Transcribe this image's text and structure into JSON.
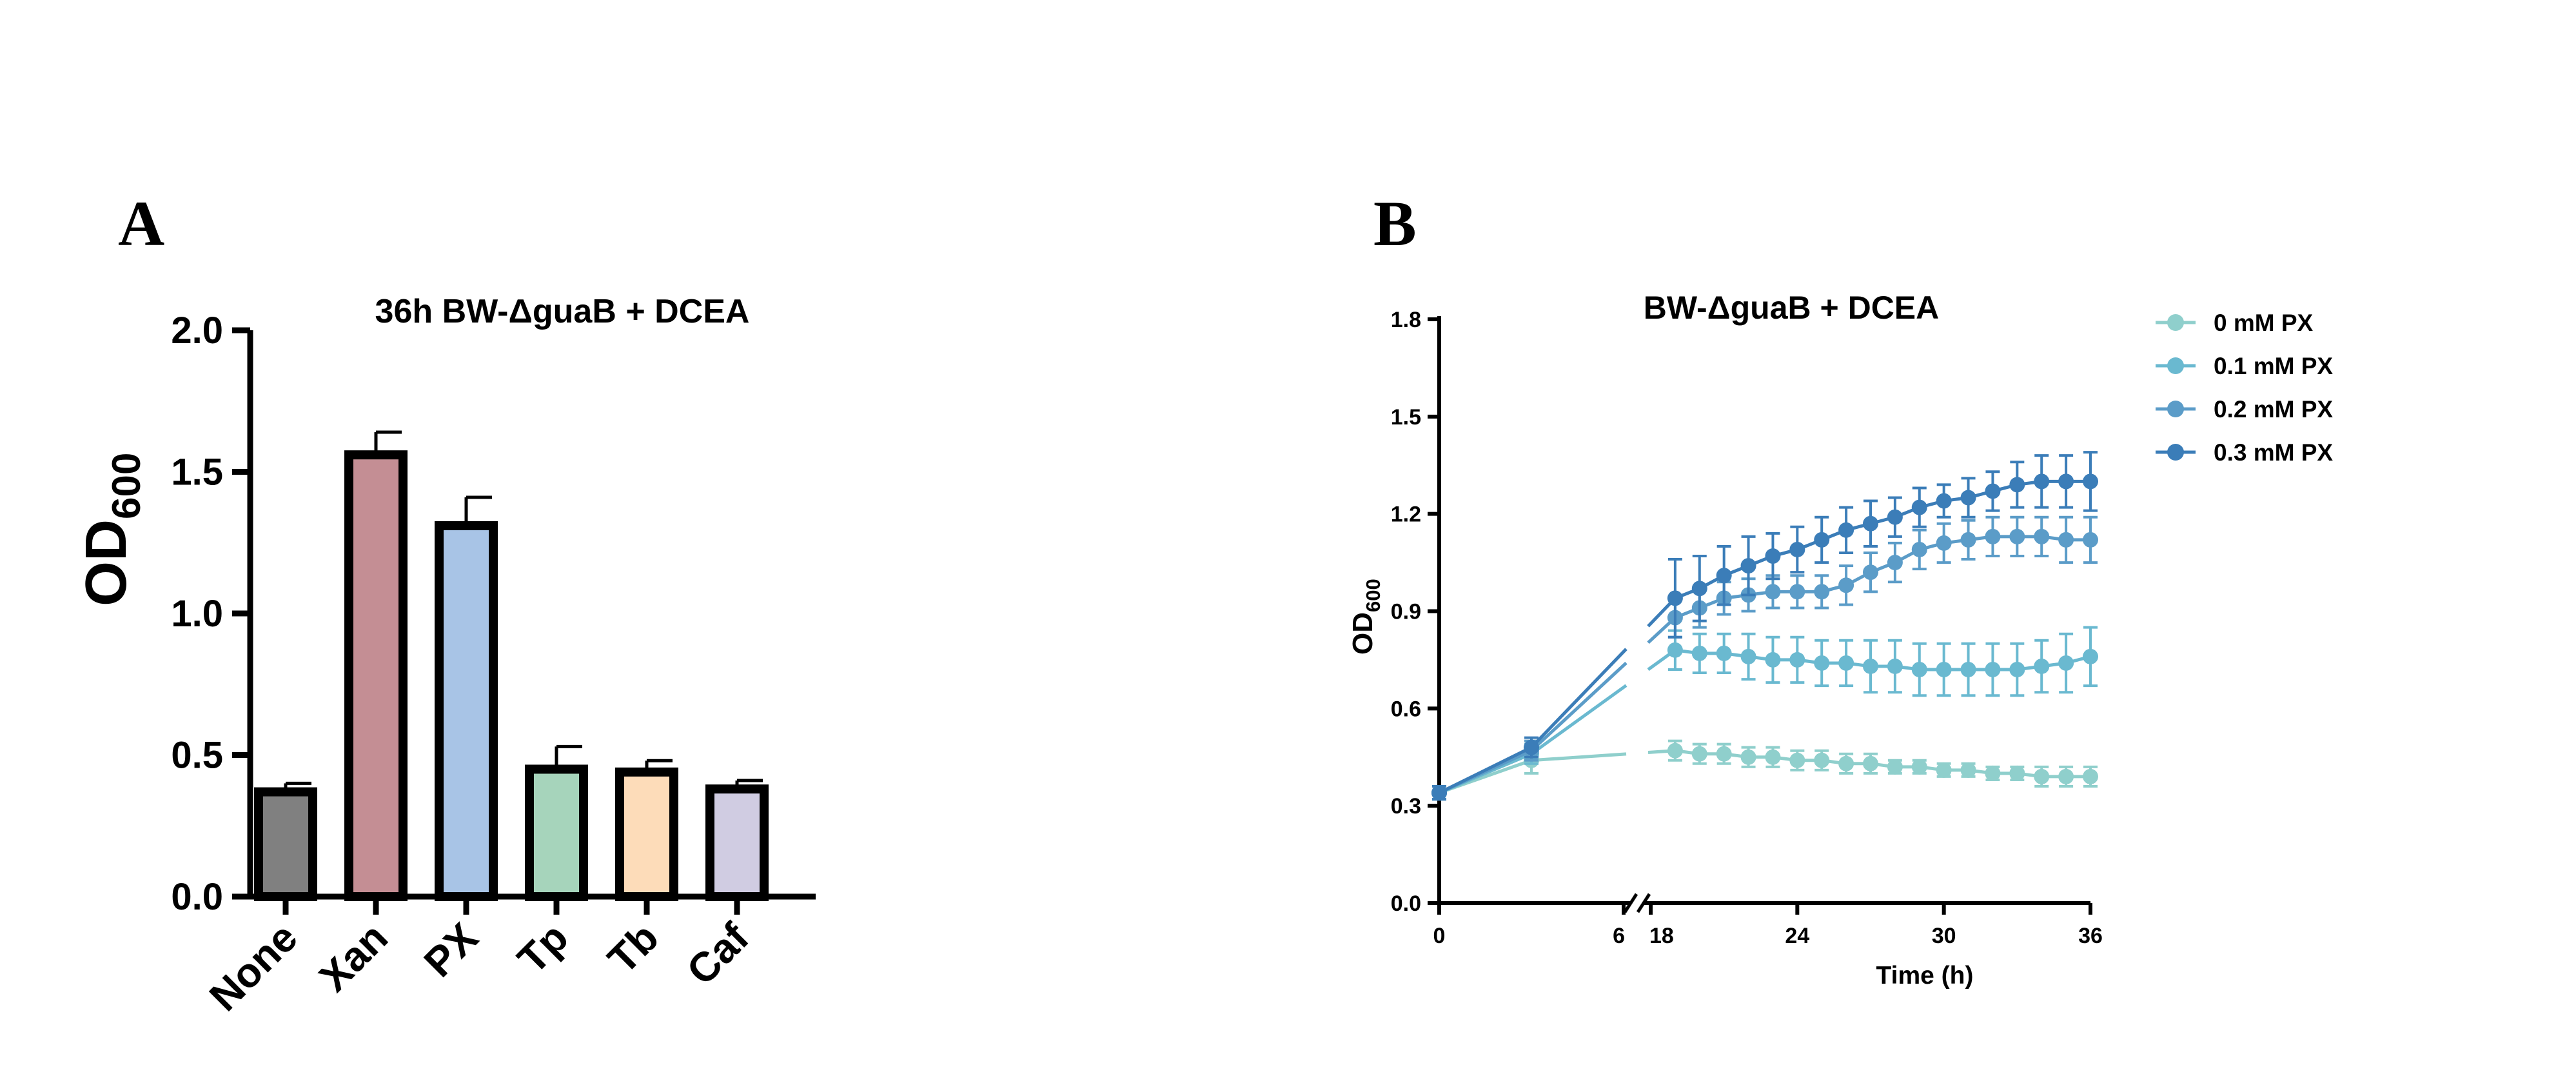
{
  "panel_labels": {
    "a": "A",
    "b": "B"
  },
  "chart_data": [
    {
      "type": "bar",
      "title": "36h BW-ΔguaB + DCEA",
      "ylabel_main": "OD",
      "ylabel_sub": "600",
      "xlabel": "",
      "ylim": [
        0,
        2.0
      ],
      "yticks": [
        "0.0",
        "0.5",
        "1.0",
        "1.5",
        "2.0"
      ],
      "categories": [
        "None",
        "Xan",
        "PX",
        "Tp",
        "Tb",
        "Caf"
      ],
      "values": [
        0.37,
        1.56,
        1.31,
        0.45,
        0.44,
        0.38
      ],
      "errors": [
        0.03,
        0.08,
        0.1,
        0.08,
        0.04,
        0.03
      ],
      "colors": [
        "#808080",
        "#c48e94",
        "#a8c4e6",
        "#a6d4bb",
        "#fddcb9",
        "#d0cce2"
      ]
    },
    {
      "type": "line",
      "title": "BW-ΔguaB + DCEA",
      "ylabel_main": "OD",
      "ylabel_sub": "600",
      "xlabel": "Time (h)",
      "ylim": [
        0,
        1.8
      ],
      "yticks": [
        "0.0",
        "0.3",
        "0.6",
        "0.9",
        "1.2",
        "1.5",
        "1.8"
      ],
      "xticks": [
        "0",
        "6",
        "18",
        "24",
        "30",
        "36"
      ],
      "legend_position": "top-right",
      "series": [
        {
          "name": "0 mM PX",
          "color": "#8fcfcc",
          "x": [
            0,
            3,
            19,
            20,
            21,
            22,
            23,
            24,
            25,
            26,
            27,
            28,
            29,
            30,
            31,
            32,
            33,
            34,
            35,
            36
          ],
          "y": [
            0.34,
            0.44,
            0.47,
            0.46,
            0.46,
            0.45,
            0.45,
            0.44,
            0.44,
            0.43,
            0.43,
            0.42,
            0.42,
            0.41,
            0.41,
            0.4,
            0.4,
            0.39,
            0.39,
            0.39
          ],
          "err": [
            0.02,
            0.04,
            0.03,
            0.03,
            0.03,
            0.03,
            0.03,
            0.03,
            0.03,
            0.03,
            0.03,
            0.02,
            0.02,
            0.02,
            0.02,
            0.02,
            0.02,
            0.03,
            0.03,
            0.03
          ]
        },
        {
          "name": "0.1 mM PX",
          "color": "#6ab9d0",
          "x": [
            0,
            3,
            19,
            20,
            21,
            22,
            23,
            24,
            25,
            26,
            27,
            28,
            29,
            30,
            31,
            32,
            33,
            34,
            35,
            36
          ],
          "y": [
            0.34,
            0.46,
            0.78,
            0.77,
            0.77,
            0.76,
            0.75,
            0.75,
            0.74,
            0.74,
            0.73,
            0.73,
            0.72,
            0.72,
            0.72,
            0.72,
            0.72,
            0.73,
            0.74,
            0.76
          ],
          "err": [
            0.02,
            0.03,
            0.06,
            0.06,
            0.06,
            0.07,
            0.07,
            0.07,
            0.07,
            0.07,
            0.08,
            0.08,
            0.08,
            0.08,
            0.08,
            0.08,
            0.08,
            0.08,
            0.09,
            0.09
          ]
        },
        {
          "name": "0.2 mM PX",
          "color": "#5b9cc8",
          "x": [
            0,
            3,
            19,
            20,
            21,
            22,
            23,
            24,
            25,
            26,
            27,
            28,
            29,
            30,
            31,
            32,
            33,
            34,
            35,
            36
          ],
          "y": [
            0.34,
            0.47,
            0.88,
            0.91,
            0.94,
            0.95,
            0.96,
            0.96,
            0.96,
            0.98,
            1.02,
            1.05,
            1.09,
            1.11,
            1.12,
            1.13,
            1.13,
            1.13,
            1.12,
            1.12
          ],
          "err": [
            0.02,
            0.03,
            0.06,
            0.06,
            0.05,
            0.05,
            0.05,
            0.05,
            0.05,
            0.06,
            0.06,
            0.06,
            0.06,
            0.06,
            0.06,
            0.06,
            0.06,
            0.06,
            0.07,
            0.07
          ]
        },
        {
          "name": "0.3 mM PX",
          "color": "#3b7db8",
          "x": [
            0,
            3,
            19,
            20,
            21,
            22,
            23,
            24,
            25,
            26,
            27,
            28,
            29,
            30,
            31,
            32,
            33,
            34,
            35,
            36
          ],
          "y": [
            0.34,
            0.48,
            0.94,
            0.97,
            1.01,
            1.04,
            1.07,
            1.09,
            1.12,
            1.15,
            1.17,
            1.19,
            1.22,
            1.24,
            1.25,
            1.27,
            1.29,
            1.3,
            1.3,
            1.3
          ],
          "err": [
            0.02,
            0.03,
            0.12,
            0.1,
            0.09,
            0.09,
            0.07,
            0.07,
            0.07,
            0.07,
            0.07,
            0.06,
            0.06,
            0.05,
            0.06,
            0.06,
            0.07,
            0.08,
            0.08,
            0.09
          ]
        }
      ]
    }
  ]
}
